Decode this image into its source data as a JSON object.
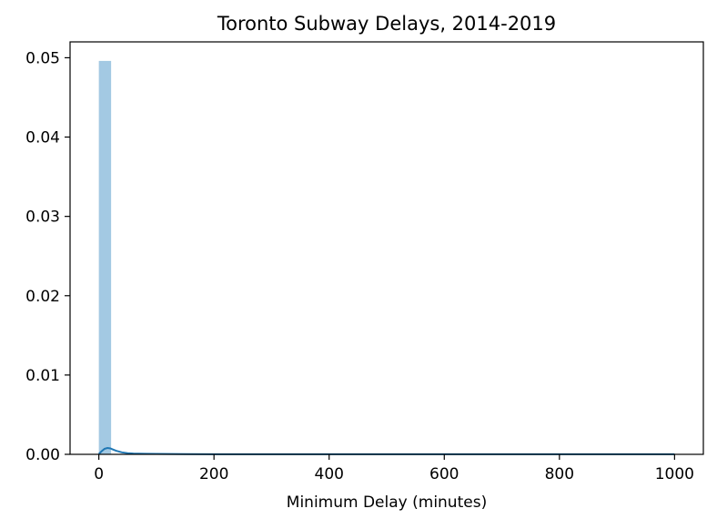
{
  "chart_data": {
    "type": "bar",
    "title": "Toronto Subway Delays, 2014-2019",
    "xlabel": "Minimum Delay (minutes)",
    "ylabel": "",
    "xlim": [
      -50,
      1050
    ],
    "ylim": [
      0,
      0.052
    ],
    "grid": false,
    "legend": "none",
    "x_ticks": [
      0,
      200,
      400,
      600,
      800,
      1000
    ],
    "x_tick_labels": [
      "0",
      "200",
      "400",
      "600",
      "800",
      "1000"
    ],
    "y_ticks": [
      0.0,
      0.01,
      0.02,
      0.03,
      0.04,
      0.05
    ],
    "y_tick_labels": [
      "0.00",
      "0.01",
      "0.02",
      "0.03",
      "0.04",
      "0.05"
    ],
    "histogram": {
      "bin_start": 0,
      "bin_width": 21.3,
      "bin_values": [
        0.0496
      ],
      "color": "#a3c9e3"
    },
    "density_curve": {
      "color": "#1f77b4",
      "x": [
        0,
        5,
        10,
        15,
        20,
        25,
        30,
        40,
        50,
        60,
        80,
        100,
        150,
        200,
        300,
        400,
        500,
        600,
        700,
        800,
        900,
        1000
      ],
      "y": [
        5e-05,
        0.0004,
        0.0007,
        0.0008,
        0.00075,
        0.0006,
        0.00045,
        0.00025,
        0.00015,
        0.0001,
        7e-05,
        5e-05,
        3e-05,
        2e-05,
        1e-05,
        1e-05,
        1e-05,
        1e-05,
        1e-05,
        1e-05,
        1e-05,
        1e-05
      ]
    }
  }
}
